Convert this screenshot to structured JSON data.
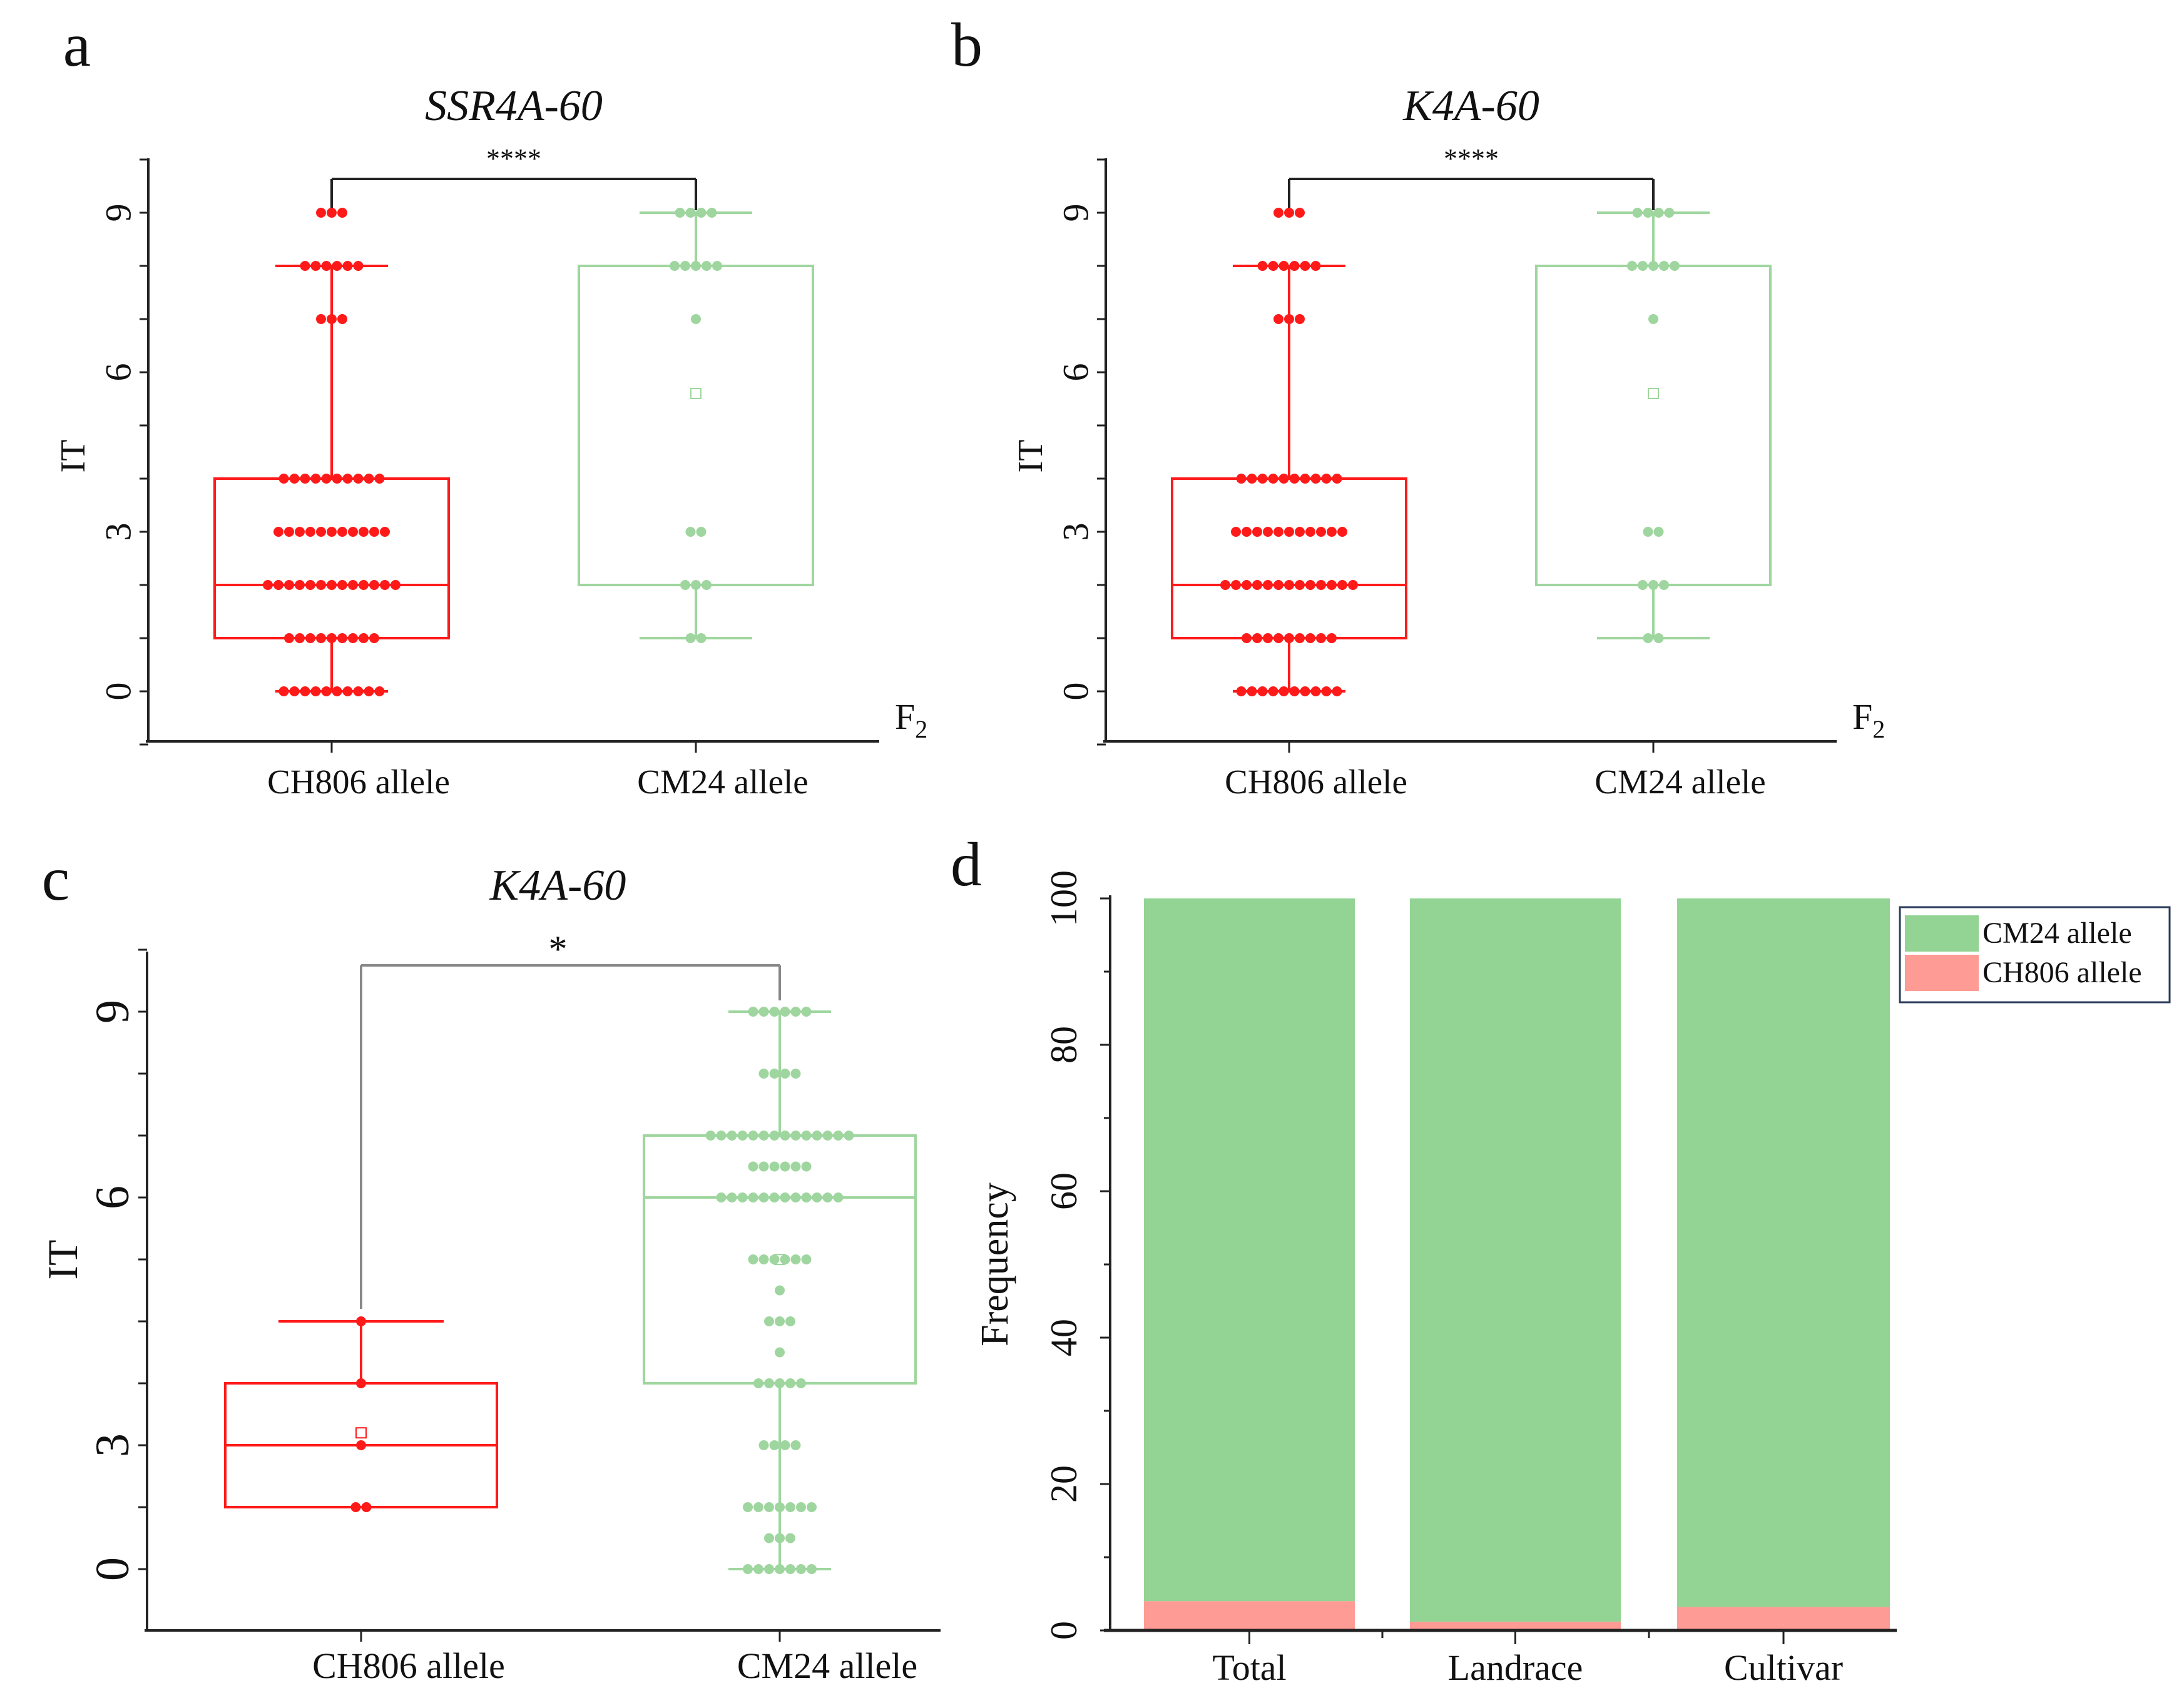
{
  "chart_data": [
    {
      "panel": "a",
      "type": "box",
      "title": "SSR4A-60",
      "significance": "****",
      "ylabel": "IT",
      "population_label": "F",
      "population_subscript": "2",
      "yticks": [
        0,
        3,
        6,
        9
      ],
      "ylim": [
        -1,
        10
      ],
      "categories": [
        "CH806 allele",
        "CM24 allele"
      ],
      "series": [
        {
          "name": "CH806 allele",
          "color": "#ff1a1a",
          "q1": 1,
          "median": 2,
          "q3": 4,
          "whisker_low": 0,
          "whisker_high": 8,
          "mean": null,
          "points": {
            "0": 10,
            "1": 9,
            "2": 13,
            "3": 11,
            "4": 10,
            "7": 3,
            "8": 6,
            "9": 3
          }
        },
        {
          "name": "CM24 allele",
          "color": "#9fd69f",
          "q1": 2,
          "median": 8,
          "q3": 8,
          "whisker_low": 1,
          "whisker_high": 9,
          "mean": 5.6,
          "points": {
            "1": 2,
            "2": 3,
            "3": 2,
            "7": 1,
            "8": 5,
            "9": 4
          }
        }
      ]
    },
    {
      "panel": "b",
      "type": "box",
      "title": "K4A-60",
      "significance": "****",
      "ylabel": "IT",
      "population_label": "F",
      "population_subscript": "2",
      "yticks": [
        0,
        3,
        6,
        9
      ],
      "ylim": [
        -1,
        10
      ],
      "categories": [
        "CH806 allele",
        "CM24 allele"
      ],
      "series": [
        {
          "name": "CH806 allele",
          "color": "#ff1a1a",
          "q1": 1,
          "median": 2,
          "q3": 4,
          "whisker_low": 0,
          "whisker_high": 8,
          "mean": null,
          "points": {
            "0": 10,
            "1": 9,
            "2": 13,
            "3": 11,
            "4": 10,
            "7": 3,
            "8": 6,
            "9": 3
          }
        },
        {
          "name": "CM24 allele",
          "color": "#9fd69f",
          "q1": 2,
          "median": 8,
          "q3": 8,
          "whisker_low": 1,
          "whisker_high": 9,
          "mean": 5.6,
          "points": {
            "1": 2,
            "2": 3,
            "3": 2,
            "7": 1,
            "8": 5,
            "9": 4
          }
        }
      ]
    },
    {
      "panel": "c",
      "type": "box",
      "title": "K4A-60",
      "significance": "*",
      "ylabel": "IT",
      "yticks": [
        0,
        3,
        6,
        9
      ],
      "categories": [
        "CH806 allele",
        "CM24 allele"
      ],
      "series": [
        {
          "name": "CH806 allele",
          "color": "#ff1a1a",
          "q1": 1.5,
          "median": 3,
          "q3": 3.75,
          "whisker_low": 1.5,
          "whisker_high": 4.5,
          "mean": 3.15,
          "points": {
            "1.5": 2,
            "3": 1,
            "3.75": 1,
            "4.5": 1
          }
        },
        {
          "name": "CM24 allele",
          "color": "#9fd69f",
          "q1": 3.75,
          "median": 6,
          "q3": 7,
          "whisker_low": 0,
          "whisker_high": 9,
          "mean": 5.25,
          "points": {
            "0": 7,
            "0.75": 3,
            "1.5": 7,
            "3": 4,
            "3.75": 5,
            "4.125": 1,
            "4.5": 3,
            "4.875": 1,
            "5.25": 6,
            "6": 12,
            "6.5": 6,
            "7": 14,
            "8": 4,
            "9": 6
          }
        }
      ]
    },
    {
      "panel": "d",
      "type": "bar",
      "stacked": true,
      "ylabel": "Frequency",
      "ylim": [
        0,
        100
      ],
      "yticks": [
        0,
        20,
        40,
        60,
        80,
        100
      ],
      "categories": [
        "Total",
        "Landrace",
        "Cultivar"
      ],
      "legend_position": "top-right",
      "series": [
        {
          "name": "CM24 allele",
          "color": "#93d494",
          "values": [
            96,
            98.8,
            96.8
          ]
        },
        {
          "name": "CH806 allele",
          "color": "#ff9b95",
          "values": [
            4,
            1.2,
            3.2
          ]
        }
      ]
    }
  ]
}
